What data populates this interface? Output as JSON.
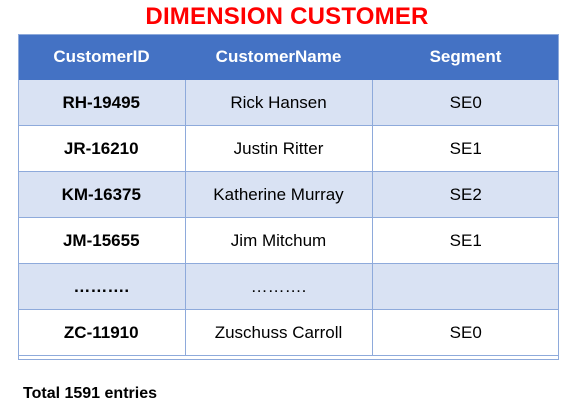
{
  "title": "DIMENSION CUSTOMER",
  "table": {
    "headers": [
      "CustomerID",
      "CustomerName",
      "Segment"
    ],
    "rows": [
      {
        "id": "RH-19495",
        "name": "Rick Hansen",
        "segment": "SE0"
      },
      {
        "id": "JR-16210",
        "name": "Justin Ritter",
        "segment": "SE1"
      },
      {
        "id": "KM-16375",
        "name": "Katherine Murray",
        "segment": "SE2"
      },
      {
        "id": "JM-15655",
        "name": "Jim Mitchum",
        "segment": "SE1"
      },
      {
        "id": "……….",
        "name": "……….",
        "segment": ""
      },
      {
        "id": "ZC-11910",
        "name": "Zuschuss Carroll",
        "segment": "SE0"
      }
    ]
  },
  "footer": {
    "total": "Total 1591 entries"
  },
  "colors": {
    "title": "#ff0000",
    "header_bg": "#4472c4",
    "band_bg": "#d9e2f3",
    "grid": "#8eaadb"
  }
}
